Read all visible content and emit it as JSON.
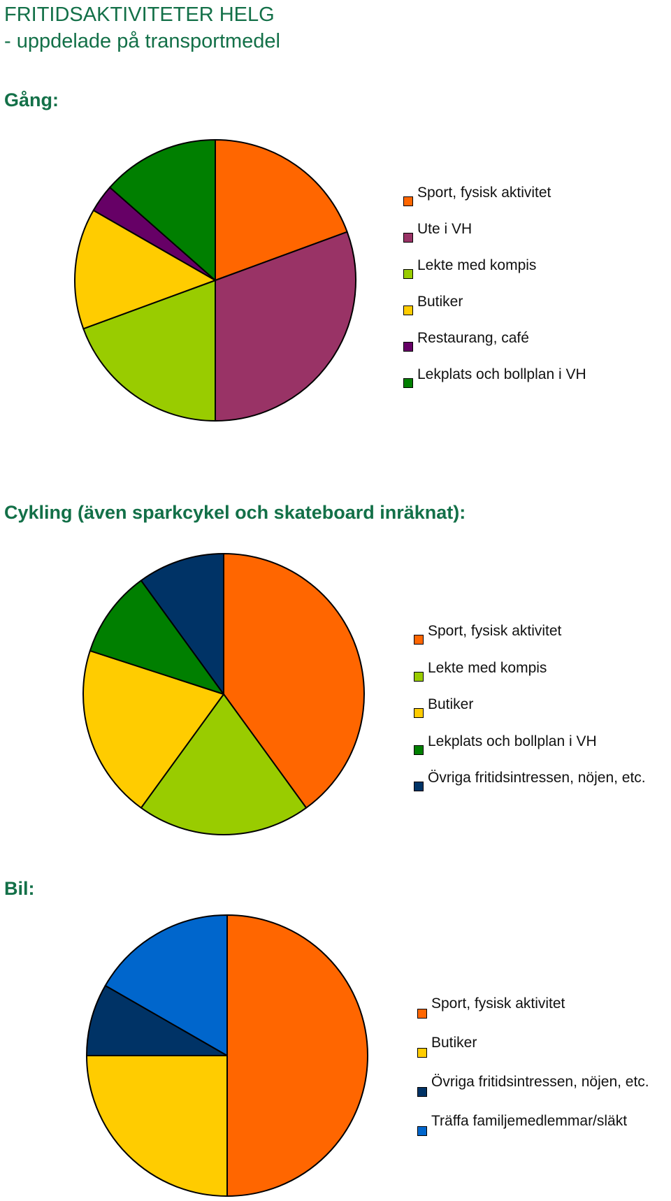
{
  "page": {
    "title_line1": "FRITIDSAKTIVITETER HELG",
    "title_line2": "- uppdelade på transportmedel"
  },
  "colors": {
    "title": "#137048",
    "outline": "#000000",
    "Sport, fysisk aktivitet": "#FF6600",
    "Ute i VH": "#993366",
    "Lekte med kompis": "#99CC00",
    "Butiker": "#FFCC00",
    "Restaurang, café": "#660066",
    "Lekplats och bollplan i VH": "#007F00",
    "Övriga fritidsintressen, nöjen, etc.": "#003366",
    "Träffa familjemedlemmar/släkt": "#0066CC"
  },
  "chart_data": [
    {
      "type": "pie",
      "title": "Gång:",
      "legend_position": "right",
      "categories": [
        "Sport, fysisk aktivitet",
        "Ute i VH",
        "Lekte med kompis",
        "Butiker",
        "Restaurang, café",
        "Lekplats och bollplan i VH"
      ],
      "values": [
        19.4,
        30.6,
        19.4,
        13.9,
        3.2,
        13.5
      ]
    },
    {
      "type": "pie",
      "title": "Cykling (även sparkcykel och skateboard inräknat):",
      "legend_position": "right",
      "categories": [
        "Sport, fysisk aktivitet",
        "Lekte med kompis",
        "Butiker",
        "Lekplats och bollplan i VH",
        "Övriga fritidsintressen, nöjen, etc."
      ],
      "values": [
        40,
        20,
        20,
        10,
        10
      ]
    },
    {
      "type": "pie",
      "title": "Bil:",
      "legend_position": "right",
      "categories": [
        "Sport, fysisk aktivitet",
        "Butiker",
        "Övriga fritidsintressen, nöjen, etc.",
        "Träffa familjemedlemmar/släkt"
      ],
      "values": [
        50,
        25,
        8.3,
        16.7
      ]
    }
  ]
}
